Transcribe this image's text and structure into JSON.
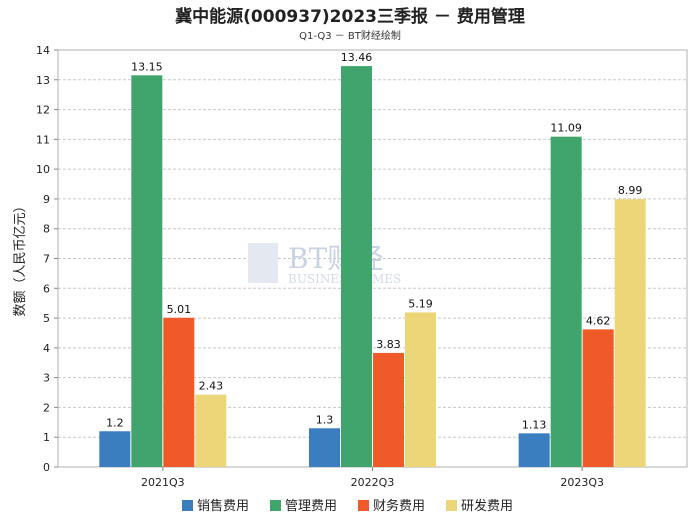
{
  "title": "冀中能源(000937)2023三季报 － 费用管理",
  "subtitle": "Q1-Q3 － BT财经绘制",
  "watermark": {
    "brand": "BT财经",
    "tagline": "BUSINESS TIMES"
  },
  "chart_data": {
    "type": "bar",
    "title": "冀中能源(000937)2023三季报 － 费用管理",
    "subtitle": "Q1-Q3 － BT财经绘制",
    "xlabel": "",
    "ylabel": "数额（人民币亿元）",
    "ylim": [
      0,
      14
    ],
    "yticks": [
      0,
      1,
      2,
      3,
      4,
      5,
      6,
      7,
      8,
      9,
      10,
      11,
      12,
      13,
      14
    ],
    "grid": true,
    "legend_position": "bottom",
    "categories": [
      "2021Q3",
      "2022Q3",
      "2023Q3"
    ],
    "series": [
      {
        "name": "销售费用",
        "color": "#3a7ebf",
        "values": [
          1.2,
          1.3,
          1.13
        ]
      },
      {
        "name": "管理费用",
        "color": "#3fa56c",
        "values": [
          13.15,
          13.46,
          11.09
        ]
      },
      {
        "name": "财务费用",
        "color": "#f05a28",
        "values": [
          5.01,
          3.83,
          4.62
        ]
      },
      {
        "name": "研发费用",
        "color": "#ecd678",
        "values": [
          2.43,
          5.19,
          8.99
        ]
      }
    ]
  }
}
